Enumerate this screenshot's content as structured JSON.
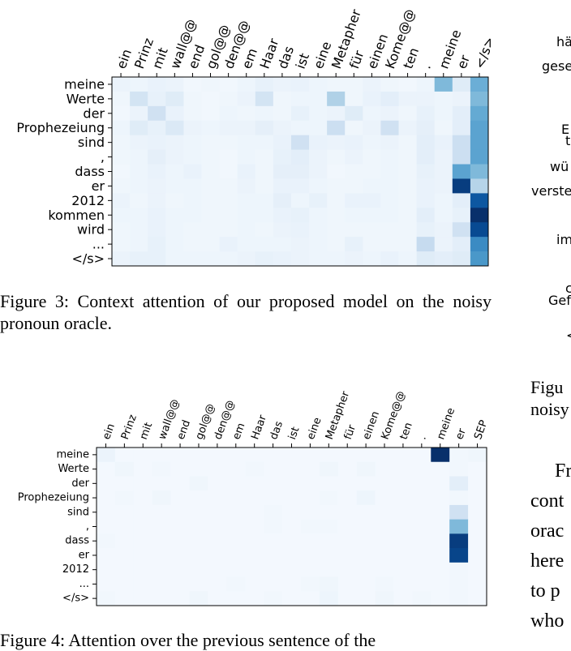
{
  "figure3": {
    "caption": "Figure 3: Context attention of our proposed model on the noisy pronoun oracle.",
    "chart_data": {
      "type": "heatmap",
      "x_labels": [
        "ein",
        "Prinz",
        "mit",
        "wall@@",
        "end",
        "gol@@",
        "den@@",
        "em",
        "Haar",
        "das",
        "ist",
        "eine",
        "Metapher",
        "für",
        "einen",
        "Kome@@",
        "ten",
        ".",
        "meine",
        "er",
        "</s>"
      ],
      "y_labels": [
        "meine",
        "Werte",
        "der",
        "Prophezeiung",
        "sind",
        ",",
        "dass",
        "er",
        "2012",
        "kommen",
        "wird",
        "...",
        "</s>"
      ],
      "colormap": "Blues",
      "values": [
        [
          0.06,
          0.05,
          0.07,
          0.06,
          0.03,
          0.04,
          0.03,
          0.05,
          0.08,
          0.06,
          0.07,
          0.05,
          0.04,
          0.04,
          0.06,
          0.04,
          0.03,
          0.05,
          0.45,
          0.12,
          0.5
        ],
        [
          0.04,
          0.18,
          0.08,
          0.12,
          0.04,
          0.03,
          0.04,
          0.06,
          0.18,
          0.04,
          0.05,
          0.05,
          0.32,
          0.04,
          0.07,
          0.1,
          0.06,
          0.06,
          0.05,
          0.06,
          0.45
        ],
        [
          0.03,
          0.06,
          0.2,
          0.07,
          0.04,
          0.03,
          0.05,
          0.04,
          0.05,
          0.04,
          0.08,
          0.05,
          0.06,
          0.12,
          0.05,
          0.06,
          0.04,
          0.08,
          0.05,
          0.1,
          0.52
        ],
        [
          0.05,
          0.12,
          0.08,
          0.14,
          0.06,
          0.05,
          0.06,
          0.06,
          0.09,
          0.06,
          0.05,
          0.05,
          0.22,
          0.04,
          0.06,
          0.2,
          0.06,
          0.09,
          0.04,
          0.1,
          0.55
        ],
        [
          0.04,
          0.06,
          0.07,
          0.06,
          0.05,
          0.04,
          0.04,
          0.05,
          0.05,
          0.07,
          0.2,
          0.07,
          0.06,
          0.07,
          0.05,
          0.06,
          0.04,
          0.1,
          0.07,
          0.22,
          0.55
        ],
        [
          0.04,
          0.05,
          0.09,
          0.06,
          0.05,
          0.04,
          0.03,
          0.05,
          0.04,
          0.08,
          0.1,
          0.06,
          0.04,
          0.06,
          0.04,
          0.05,
          0.04,
          0.1,
          0.06,
          0.22,
          0.55
        ],
        [
          0.03,
          0.05,
          0.07,
          0.05,
          0.07,
          0.04,
          0.03,
          0.07,
          0.04,
          0.09,
          0.09,
          0.06,
          0.03,
          0.04,
          0.04,
          0.05,
          0.04,
          0.08,
          0.06,
          0.55,
          0.45
        ],
        [
          0.04,
          0.05,
          0.06,
          0.05,
          0.05,
          0.04,
          0.04,
          0.06,
          0.04,
          0.07,
          0.07,
          0.05,
          0.04,
          0.04,
          0.05,
          0.05,
          0.04,
          0.07,
          0.06,
          0.95,
          0.3
        ],
        [
          0.06,
          0.04,
          0.06,
          0.04,
          0.05,
          0.04,
          0.04,
          0.05,
          0.05,
          0.09,
          0.05,
          0.08,
          0.04,
          0.07,
          0.07,
          0.05,
          0.04,
          0.07,
          0.05,
          0.1,
          0.85
        ],
        [
          0.05,
          0.05,
          0.07,
          0.05,
          0.05,
          0.04,
          0.04,
          0.05,
          0.05,
          0.07,
          0.08,
          0.05,
          0.04,
          0.05,
          0.05,
          0.05,
          0.04,
          0.1,
          0.05,
          0.08,
          1.0
        ],
        [
          0.04,
          0.05,
          0.07,
          0.05,
          0.04,
          0.04,
          0.04,
          0.05,
          0.04,
          0.06,
          0.07,
          0.05,
          0.04,
          0.04,
          0.04,
          0.04,
          0.04,
          0.08,
          0.06,
          0.2,
          0.9
        ],
        [
          0.04,
          0.05,
          0.08,
          0.05,
          0.04,
          0.04,
          0.07,
          0.05,
          0.05,
          0.05,
          0.06,
          0.05,
          0.04,
          0.08,
          0.04,
          0.04,
          0.04,
          0.25,
          0.06,
          0.1,
          0.65
        ],
        [
          0.06,
          0.08,
          0.08,
          0.05,
          0.05,
          0.05,
          0.05,
          0.06,
          0.08,
          0.07,
          0.06,
          0.05,
          0.05,
          0.06,
          0.05,
          0.07,
          0.05,
          0.12,
          0.1,
          0.12,
          0.6
        ]
      ]
    }
  },
  "figure4": {
    "caption": "Figure 4: Attention over the previous sentence of the",
    "chart_data": {
      "type": "heatmap",
      "x_labels": [
        "ein",
        "Prinz",
        "mit",
        "wall@@",
        "end",
        "gol@@",
        "den@@",
        "em",
        "Haar",
        "das",
        "ist",
        "eine",
        "Metapher",
        "für",
        "einen",
        "Kome@@",
        "ten",
        ".",
        "meine",
        "er",
        "SEP"
      ],
      "y_labels": [
        "meine",
        "Werte",
        "der",
        "Prophezeiung",
        "sind",
        ",",
        "dass",
        "er",
        "2012",
        "...",
        "</s>"
      ],
      "colormap": "Blues",
      "values": [
        [
          0.06,
          0.02,
          0.02,
          0.02,
          0.02,
          0.02,
          0.02,
          0.02,
          0.02,
          0.02,
          0.02,
          0.02,
          0.02,
          0.02,
          0.02,
          0.02,
          0.02,
          0.02,
          1.0,
          0.03,
          0.04
        ],
        [
          0.02,
          0.04,
          0.02,
          0.03,
          0.02,
          0.02,
          0.02,
          0.02,
          0.03,
          0.02,
          0.02,
          0.02,
          0.04,
          0.02,
          0.04,
          0.02,
          0.02,
          0.02,
          0.02,
          0.03,
          0.02
        ],
        [
          0.02,
          0.02,
          0.02,
          0.02,
          0.02,
          0.04,
          0.02,
          0.02,
          0.02,
          0.02,
          0.02,
          0.02,
          0.02,
          0.02,
          0.02,
          0.02,
          0.02,
          0.02,
          0.02,
          0.1,
          0.02
        ],
        [
          0.02,
          0.03,
          0.02,
          0.04,
          0.02,
          0.02,
          0.02,
          0.02,
          0.02,
          0.02,
          0.02,
          0.02,
          0.03,
          0.02,
          0.05,
          0.02,
          0.02,
          0.02,
          0.02,
          0.03,
          0.02
        ],
        [
          0.02,
          0.02,
          0.02,
          0.02,
          0.02,
          0.02,
          0.02,
          0.02,
          0.02,
          0.03,
          0.02,
          0.02,
          0.02,
          0.02,
          0.02,
          0.02,
          0.02,
          0.02,
          0.02,
          0.2,
          0.02
        ],
        [
          0.02,
          0.02,
          0.02,
          0.02,
          0.02,
          0.02,
          0.02,
          0.02,
          0.02,
          0.03,
          0.02,
          0.03,
          0.03,
          0.02,
          0.02,
          0.02,
          0.02,
          0.02,
          0.02,
          0.45,
          0.02
        ],
        [
          0.03,
          0.02,
          0.02,
          0.02,
          0.02,
          0.02,
          0.02,
          0.02,
          0.02,
          0.02,
          0.02,
          0.02,
          0.02,
          0.02,
          0.02,
          0.02,
          0.02,
          0.02,
          0.02,
          0.95,
          0.02
        ],
        [
          0.02,
          0.02,
          0.02,
          0.02,
          0.02,
          0.02,
          0.02,
          0.02,
          0.02,
          0.02,
          0.02,
          0.02,
          0.02,
          0.02,
          0.02,
          0.02,
          0.02,
          0.02,
          0.02,
          0.92,
          0.02
        ],
        [
          0.02,
          0.02,
          0.02,
          0.02,
          0.02,
          0.02,
          0.02,
          0.02,
          0.02,
          0.02,
          0.02,
          0.02,
          0.02,
          0.02,
          0.02,
          0.02,
          0.02,
          0.02,
          0.02,
          0.03,
          0.02
        ],
        [
          0.02,
          0.02,
          0.02,
          0.02,
          0.02,
          0.02,
          0.02,
          0.03,
          0.02,
          0.02,
          0.02,
          0.03,
          0.04,
          0.02,
          0.02,
          0.03,
          0.02,
          0.02,
          0.02,
          0.03,
          0.02
        ],
        [
          0.03,
          0.02,
          0.02,
          0.02,
          0.02,
          0.04,
          0.02,
          0.02,
          0.02,
          0.03,
          0.02,
          0.02,
          0.05,
          0.02,
          0.02,
          0.04,
          0.02,
          0.03,
          0.02,
          0.03,
          0.02
        ]
      ]
    }
  },
  "right_column": {
    "figure_labels": [
      "hä",
      "gese",
      "E",
      "t",
      "wü",
      "verste",
      "im",
      "c",
      "Gef",
      "<"
    ],
    "caption_lines": [
      "Figu",
      "noisy"
    ],
    "body_lines": [
      "Fr",
      "cont",
      "orac",
      "here",
      "to p",
      "who"
    ]
  }
}
